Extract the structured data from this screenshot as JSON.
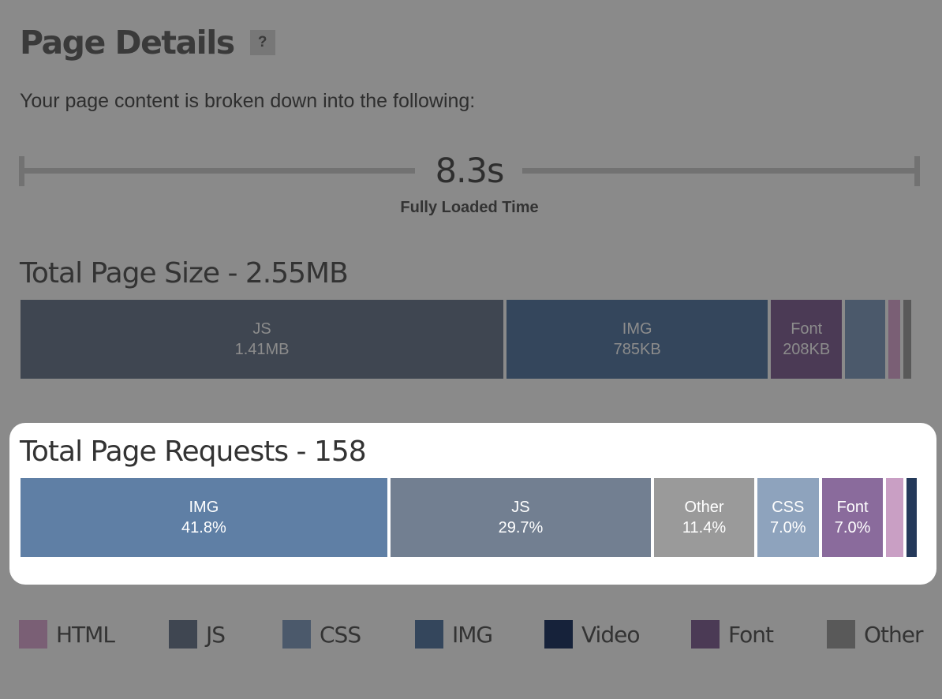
{
  "header": {
    "title": "Page Details",
    "help_label": "?"
  },
  "subtitle": "Your page content is broken down into the following:",
  "timeline": {
    "value": "8.3s",
    "label": "Fully Loaded Time"
  },
  "page_size": {
    "title": "Total Page Size - 2.55MB",
    "segments": [
      {
        "name": "JS",
        "value": "1.41MB",
        "fraction": 0.5485,
        "color": "#3f4651"
      },
      {
        "name": "IMG",
        "value": "785KB",
        "fraction": 0.2968,
        "color": "#34465c"
      },
      {
        "name": "Font",
        "value": "208KB",
        "fraction": 0.0806,
        "color": "#4b3a55"
      },
      {
        "name": "",
        "value": "",
        "fraction": 0.0456,
        "color": "#4b596b"
      },
      {
        "name": "",
        "value": "",
        "fraction": 0.0131,
        "color": "#7a5f75"
      },
      {
        "name": "",
        "value": "",
        "fraction": 0.0096,
        "color": "#595959"
      }
    ]
  },
  "page_requests": {
    "title": "Total Page Requests - 158",
    "segments": [
      {
        "name": "IMG",
        "value": "41.8%",
        "fraction": 0.418,
        "color": "#5f7fa5"
      },
      {
        "name": "JS",
        "value": "29.7%",
        "fraction": 0.297,
        "color": "#727f91"
      },
      {
        "name": "Other",
        "value": "11.4%",
        "fraction": 0.114,
        "color": "#9a9a9a"
      },
      {
        "name": "CSS",
        "value": "7.0%",
        "fraction": 0.07,
        "color": "#8ea3bd"
      },
      {
        "name": "Font",
        "value": "7.0%",
        "fraction": 0.07,
        "color": "#8a6b9c"
      },
      {
        "name": "",
        "value": "",
        "fraction": 0.019,
        "color": "#c99fc4"
      },
      {
        "name": "",
        "value": "",
        "fraction": 0.012,
        "color": "#24395a"
      }
    ]
  },
  "legend": [
    {
      "label": "HTML",
      "color": "#7a5f75"
    },
    {
      "label": "JS",
      "color": "#3f4651"
    },
    {
      "label": "CSS",
      "color": "#4b596b"
    },
    {
      "label": "IMG",
      "color": "#34465c"
    },
    {
      "label": "Video",
      "color": "#16223a"
    },
    {
      "label": "Font",
      "color": "#4b3a55"
    },
    {
      "label": "Other",
      "color": "#595959"
    }
  ]
}
